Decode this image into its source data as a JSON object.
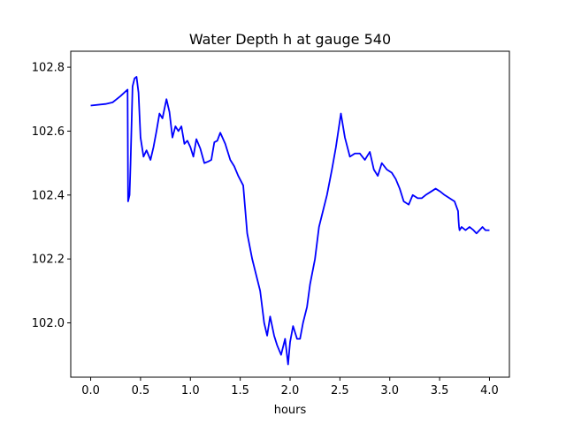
{
  "chart_data": {
    "type": "line",
    "title": "Water Depth h at gauge 540",
    "xlabel": "hours",
    "ylabel": "",
    "xlim": [
      -0.2,
      4.2
    ],
    "ylim": [
      101.83,
      102.85
    ],
    "xticks": [
      0.0,
      0.5,
      1.0,
      1.5,
      2.0,
      2.5,
      3.0,
      3.5,
      4.0
    ],
    "xtick_labels": [
      "0.0",
      "0.5",
      "1.0",
      "1.5",
      "2.0",
      "2.5",
      "3.0",
      "3.5",
      "4.0"
    ],
    "yticks": [
      102.0,
      102.2,
      102.4,
      102.6,
      102.8
    ],
    "ytick_labels": [
      "102.0",
      "102.2",
      "102.4",
      "102.6",
      "102.8"
    ],
    "grid": false,
    "series": [
      {
        "color": "#0000ff",
        "x": [
          0.0,
          0.15,
          0.22,
          0.3,
          0.37,
          0.375,
          0.39,
          0.4,
          0.42,
          0.44,
          0.46,
          0.48,
          0.5,
          0.53,
          0.56,
          0.6,
          0.63,
          0.66,
          0.69,
          0.72,
          0.76,
          0.79,
          0.82,
          0.85,
          0.88,
          0.91,
          0.94,
          0.97,
          1.0,
          1.03,
          1.06,
          1.1,
          1.14,
          1.18,
          1.21,
          1.24,
          1.27,
          1.3,
          1.35,
          1.4,
          1.44,
          1.48,
          1.53,
          1.57,
          1.62,
          1.66,
          1.7,
          1.74,
          1.77,
          1.8,
          1.84,
          1.87,
          1.91,
          1.95,
          1.98,
          2.0,
          2.03,
          2.07,
          2.1,
          2.13,
          2.17,
          2.2,
          2.25,
          2.29,
          2.33,
          2.37,
          2.42,
          2.46,
          2.51,
          2.55,
          2.6,
          2.65,
          2.7,
          2.75,
          2.8,
          2.84,
          2.88,
          2.92,
          2.97,
          3.02,
          3.06,
          3.1,
          3.14,
          3.19,
          3.23,
          3.28,
          3.32,
          3.36,
          3.41,
          3.46,
          3.51,
          3.55,
          3.6,
          3.65,
          3.685,
          3.69,
          3.695,
          3.7,
          3.72,
          3.76,
          3.8,
          3.84,
          3.87,
          3.9,
          3.93,
          3.96,
          4.0
        ],
        "values": [
          102.68,
          102.685,
          102.69,
          102.71,
          102.73,
          102.38,
          102.4,
          102.5,
          102.74,
          102.765,
          102.77,
          102.72,
          102.58,
          102.52,
          102.54,
          102.51,
          102.55,
          102.6,
          102.655,
          102.64,
          102.7,
          102.66,
          102.58,
          102.615,
          102.6,
          102.615,
          102.56,
          102.57,
          102.55,
          102.52,
          102.575,
          102.545,
          102.5,
          102.505,
          102.51,
          102.565,
          102.57,
          102.595,
          102.56,
          102.51,
          102.49,
          102.46,
          102.43,
          102.28,
          102.2,
          102.15,
          102.1,
          102.0,
          101.96,
          102.02,
          101.96,
          101.93,
          101.9,
          101.95,
          101.87,
          101.94,
          101.99,
          101.95,
          101.95,
          102.0,
          102.05,
          102.12,
          102.2,
          102.3,
          102.35,
          102.4,
          102.48,
          102.55,
          102.655,
          102.58,
          102.52,
          102.53,
          102.53,
          102.51,
          102.535,
          102.48,
          102.46,
          102.5,
          102.48,
          102.47,
          102.45,
          102.42,
          102.38,
          102.37,
          102.4,
          102.39,
          102.39,
          102.4,
          102.41,
          102.42,
          102.41,
          102.4,
          102.39,
          102.38,
          102.35,
          102.32,
          102.3,
          102.29,
          102.3,
          102.29,
          102.3,
          102.29,
          102.28,
          102.29,
          102.3,
          102.29,
          102.29
        ]
      }
    ]
  }
}
